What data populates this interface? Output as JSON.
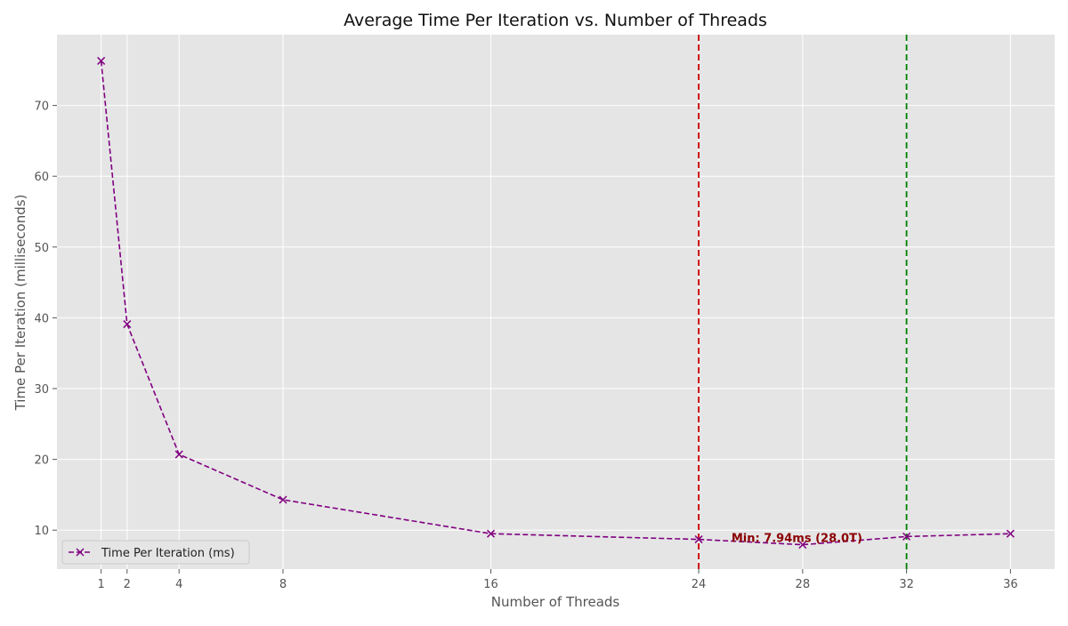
{
  "chart_data": {
    "type": "line",
    "title": "Average Time Per Iteration vs. Number of Threads",
    "xlabel": "Number of Threads",
    "ylabel": "Time Per Iteration (milliseconds)",
    "xlim": [
      -0.7,
      37.7
    ],
    "ylim": [
      4.5,
      80
    ],
    "x_ticks": [
      1,
      2,
      4,
      8,
      16,
      24,
      28,
      32,
      36
    ],
    "y_ticks": [
      10,
      20,
      30,
      40,
      50,
      60,
      70
    ],
    "grid": true,
    "legend_position": "lower-left",
    "series": [
      {
        "name": "Time Per Iteration (ms)",
        "color": "#800080",
        "line_style": "dashed",
        "marker": "x",
        "x": [
          1,
          2,
          4,
          8,
          16,
          24,
          28,
          32,
          36
        ],
        "y": [
          76.3,
          39.1,
          20.7,
          14.3,
          9.5,
          8.7,
          7.94,
          9.1,
          9.5
        ]
      }
    ],
    "reference_lines": [
      {
        "x": 24,
        "color": "#cc0000",
        "line_style": "dashed"
      },
      {
        "x": 32,
        "color": "#008000",
        "line_style": "dashed"
      }
    ],
    "annotation": {
      "text": "Min: 7.94ms (28.0T)",
      "x": 28,
      "y": 7.94,
      "color": "#8b0000"
    },
    "colors": {
      "plot_background": "#e5e5e5",
      "grid": "#ffffff",
      "text": "#555555"
    }
  }
}
